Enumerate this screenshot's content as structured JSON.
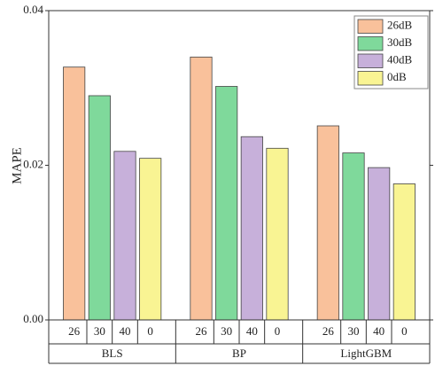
{
  "chart_data": {
    "type": "bar",
    "y_label": "MAPE",
    "categories": [
      "BLS",
      "BP",
      "LightGBM"
    ],
    "sublabels": [
      "26",
      "30",
      "40",
      "0"
    ],
    "series": [
      {
        "name": "26dB",
        "color": "#f9c19b",
        "values": [
          0.0327,
          0.034,
          0.0251
        ]
      },
      {
        "name": "30dB",
        "color": "#7fd99b",
        "values": [
          0.029,
          0.0302,
          0.0216
        ]
      },
      {
        "name": "40dB",
        "color": "#c7b0da",
        "values": [
          0.0218,
          0.0237,
          0.0197
        ]
      },
      {
        "name": "0dB",
        "color": "#f9f493",
        "values": [
          0.0209,
          0.0222,
          0.0176
        ]
      }
    ],
    "ylim": [
      0,
      0.04
    ],
    "yticks": [
      {
        "value": 0,
        "label": "0.00"
      },
      {
        "value": 0.02,
        "label": "0.02"
      },
      {
        "value": 0.04,
        "label": "0.04"
      }
    ],
    "legend": "upper right"
  }
}
